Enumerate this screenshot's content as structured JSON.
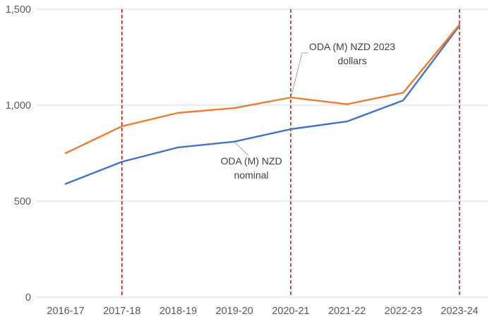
{
  "chart_data": {
    "type": "line",
    "title": "",
    "xlabel": "",
    "ylabel": "",
    "categories": [
      "2016-17",
      "2017-18",
      "2018-19",
      "2019-20",
      "2020-21",
      "2021-22",
      "2022-23",
      "2023-24"
    ],
    "series": [
      {
        "name": "ODA (M) NZD 2023 dollars",
        "color": "#ED7D31",
        "values": [
          750,
          890,
          960,
          985,
          1040,
          1005,
          1065,
          1420
        ]
      },
      {
        "name": "ODA (M) NZD nominal",
        "color": "#4472C4",
        "values": [
          590,
          705,
          780,
          810,
          875,
          915,
          1025,
          1415
        ]
      }
    ],
    "y_axis": {
      "min": 0,
      "max": 1500,
      "tick_interval": 500,
      "tick_labels": [
        "0",
        "500",
        "1,000",
        "1,500"
      ]
    },
    "grid": true,
    "legend": "none",
    "vlines": {
      "style": "dashed",
      "color": "#C00000",
      "categories": [
        "2017-18",
        "2020-21",
        "2023-24"
      ]
    },
    "annotations": [
      {
        "id": "dollars",
        "text": "ODA (M) NZD 2023\ndollars",
        "series": "ODA (M) NZD 2023 dollars",
        "category": "2020-21"
      },
      {
        "id": "nominal",
        "text": "ODA (M) NZD\nnominal",
        "series": "ODA (M) NZD nominal",
        "category": "2019-20"
      }
    ],
    "colors": {
      "gridline": "#D9D9D9",
      "axis_text": "#595959",
      "annotation_text": "#404040",
      "leader": "#A6A6A6"
    }
  }
}
